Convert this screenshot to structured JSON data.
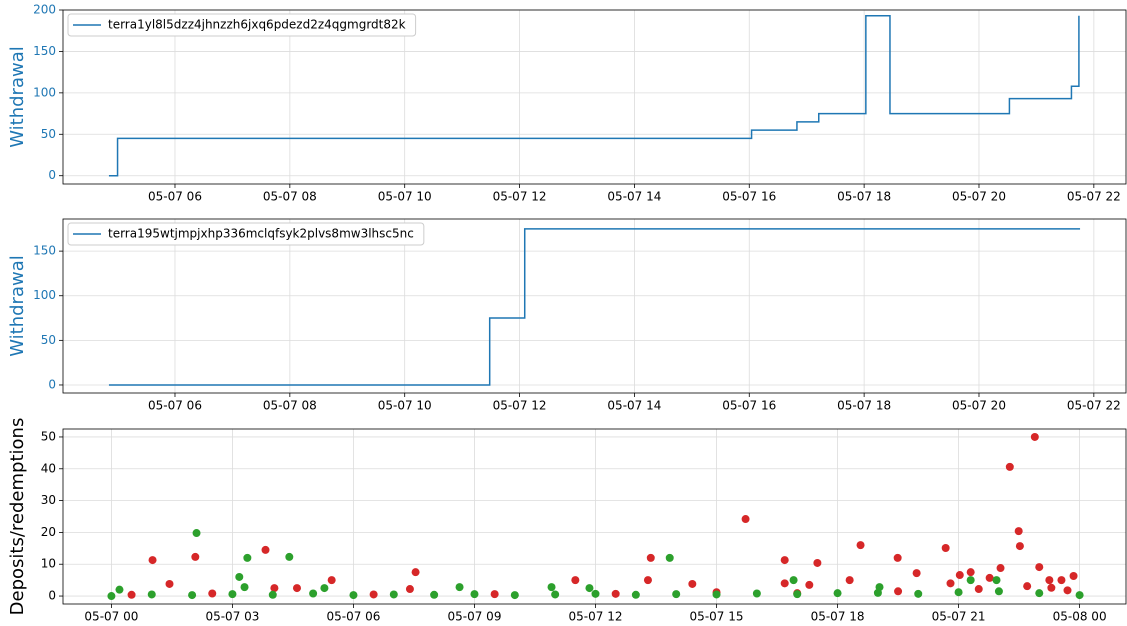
{
  "chart_data": [
    {
      "type": "line",
      "ylabel": "Withdrawal",
      "ylabel_color": "#1f77b4",
      "legend": "upper left",
      "grid": true,
      "xlim": [
        4.05,
        22.56
      ],
      "ylim": [
        -10,
        200
      ],
      "xticks": [
        {
          "value": 6,
          "label": "05-07 06"
        },
        {
          "value": 8,
          "label": "05-07 08"
        },
        {
          "value": 10,
          "label": "05-07 10"
        },
        {
          "value": 12,
          "label": "05-07 12"
        },
        {
          "value": 14,
          "label": "05-07 14"
        },
        {
          "value": 16,
          "label": "05-07 16"
        },
        {
          "value": 18,
          "label": "05-07 18"
        },
        {
          "value": 20,
          "label": "05-07 20"
        },
        {
          "value": 22,
          "label": "05-07 22"
        }
      ],
      "yticks": [
        0,
        50,
        100,
        150,
        200
      ],
      "series": [
        {
          "name": "terra1yl8l5dzz4jhnzzh6jxq6pdezd2z4qgmgrdt82k",
          "color": "#1f77b4",
          "x": [
            4.85,
            5.0,
            5.0,
            16.04,
            16.04,
            16.83,
            16.83,
            17.21,
            17.21,
            18.03,
            18.03,
            18.45,
            18.45,
            20.53,
            20.53,
            21.61,
            21.61,
            21.74,
            21.74
          ],
          "values": [
            0,
            0,
            45,
            45,
            55,
            55,
            65,
            65,
            75,
            75,
            193,
            193,
            75,
            75,
            93,
            93,
            108,
            108,
            193
          ]
        }
      ]
    },
    {
      "type": "line",
      "ylabel": "Withdrawal",
      "ylabel_color": "#1f77b4",
      "legend": "upper left",
      "grid": true,
      "xlim": [
        4.05,
        22.56
      ],
      "ylim": [
        -9,
        186
      ],
      "xticks": [
        {
          "value": 6,
          "label": "05-07 06"
        },
        {
          "value": 8,
          "label": "05-07 08"
        },
        {
          "value": 10,
          "label": "05-07 10"
        },
        {
          "value": 12,
          "label": "05-07 12"
        },
        {
          "value": 14,
          "label": "05-07 14"
        },
        {
          "value": 16,
          "label": "05-07 16"
        },
        {
          "value": 18,
          "label": "05-07 18"
        },
        {
          "value": 20,
          "label": "05-07 20"
        },
        {
          "value": 22,
          "label": "05-07 22"
        }
      ],
      "yticks": [
        0,
        50,
        100,
        150
      ],
      "series": [
        {
          "name": "terra195wtjmpjxhp336mclqfsyk2plvs8mw3lhsc5nc",
          "color": "#1f77b4",
          "x": [
            4.85,
            11.48,
            11.48,
            12.09,
            12.09,
            21.76
          ],
          "values": [
            0,
            0,
            75,
            75,
            175,
            175
          ]
        }
      ]
    },
    {
      "type": "scatter",
      "ylabel": "Deposits/redemptions",
      "ylabel_color": "#000000",
      "grid": true,
      "xlim": [
        -1.2,
        25.15
      ],
      "ylim": [
        -2.5,
        52.5
      ],
      "xticks": [
        {
          "value": 0,
          "label": "05-07 00"
        },
        {
          "value": 3,
          "label": "05-07 03"
        },
        {
          "value": 6,
          "label": "05-07 06"
        },
        {
          "value": 9,
          "label": "05-07 09"
        },
        {
          "value": 12,
          "label": "05-07 12"
        },
        {
          "value": 15,
          "label": "05-07 15"
        },
        {
          "value": 18,
          "label": "05-07 18"
        },
        {
          "value": 21,
          "label": "05-07 21"
        },
        {
          "value": 24,
          "label": "05-08 00"
        }
      ],
      "yticks": [
        0,
        10,
        20,
        30,
        40,
        50
      ],
      "series": [
        {
          "color": "#d62728",
          "x": [
            1.02,
            2.08,
            3.82,
            13.37,
            15.72,
            16.69,
            17.5,
            18.57,
            19.49,
            19.96,
            20.68,
            22.27,
            22.89,
            22.49,
            22.52,
            21.3,
            22.04,
            23.0,
            23.85,
            7.54,
            5.46,
            11.5,
            13.3,
            1.44,
            4.04,
            4.6,
            7.4,
            14.4,
            20.8,
            21.03,
            21.77,
            23.25,
            23.55,
            18.3,
            16.69,
            17.3,
            0.5,
            2.5,
            6.5,
            9.5,
            12.5,
            15.0,
            17.0,
            19.5,
            21.5,
            22.7,
            23.3,
            23.7
          ],
          "values": [
            11.3,
            12.3,
            14.5,
            12,
            24.2,
            11.3,
            10.4,
            16,
            12,
            7.2,
            15.1,
            40.6,
            50,
            20.4,
            15.7,
            7.5,
            8.8,
            9.1,
            6.3,
            7.5,
            5,
            5,
            5,
            3.8,
            2.5,
            2.5,
            2.2,
            3.8,
            4,
            6.6,
            5.7,
            5,
            5,
            5,
            4,
            3.5,
            0.4,
            0.8,
            0.5,
            0.6,
            0.7,
            1.2,
            0.9,
            1.5,
            2.2,
            3.1,
            2.6,
            1.8
          ]
        },
        {
          "color": "#2ca02c",
          "x": [
            2.11,
            3.37,
            4.41,
            3.17,
            13.84,
            16.91,
            21.3,
            21.94,
            0.2,
            3.3,
            10.91,
            11.85,
            19.04,
            5.28,
            8.63,
            0,
            1,
            2,
            3,
            4,
            5,
            6,
            7,
            8,
            9,
            10,
            11,
            12,
            13,
            14,
            15,
            16,
            17,
            18,
            19,
            20,
            21,
            22,
            23,
            24
          ],
          "values": [
            19.8,
            12,
            12.3,
            6,
            12,
            5,
            5,
            5,
            2,
            2.8,
            2.8,
            2.5,
            2.8,
            2.5,
            2.8,
            0,
            0.5,
            0.3,
            0.6,
            0.4,
            0.8,
            0.3,
            0.5,
            0.4,
            0.6,
            0.3,
            0.5,
            0.7,
            0.4,
            0.6,
            0.5,
            0.8,
            0.6,
            0.9,
            1.0,
            0.7,
            1.2,
            1.5,
            0.9,
            0.3
          ]
        }
      ]
    }
  ]
}
